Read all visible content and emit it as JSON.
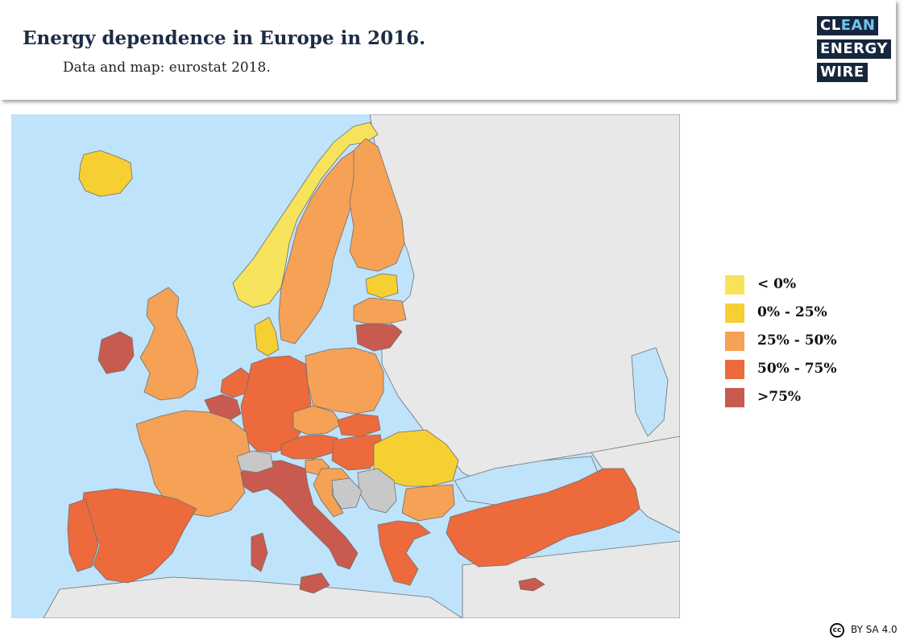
{
  "header": {
    "title": "Energy dependence in Europe in 2016.",
    "subtitle": "Data and map: eurostat 2018."
  },
  "logo": {
    "line1a": "CL",
    "line1b": "EAN",
    "line2": "ENERGY",
    "line3": "WIRE"
  },
  "colors": {
    "sea": "#bfe3fa",
    "non_eu_land": "#e8e8e8",
    "no_data": "#c8c8c8",
    "border": "#6f6f6f",
    "title": "#1d2c46",
    "logo_bg": "#16263d",
    "logo_accent": "#6fc4ee"
  },
  "legend": [
    {
      "label": "< 0%",
      "color": "#f7e35b"
    },
    {
      "label": "0% - 25%",
      "color": "#f6cf33"
    },
    {
      "label": "25% - 50%",
      "color": "#f5a156"
    },
    {
      "label": "50% - 75%",
      "color": "#ec6a3c"
    },
    {
      "label": ">75%",
      "color": "#c95a4f"
    }
  ],
  "map": {
    "countries": [
      {
        "name": "Iceland",
        "class": "0% - 25%"
      },
      {
        "name": "Norway",
        "class": "< 0%"
      },
      {
        "name": "Sweden",
        "class": "25% - 50%"
      },
      {
        "name": "Finland",
        "class": "25% - 50%"
      },
      {
        "name": "Estonia",
        "class": "0% - 25%"
      },
      {
        "name": "Latvia",
        "class": "25% - 50%"
      },
      {
        "name": "Lithuania",
        "class": ">75%"
      },
      {
        "name": "Denmark",
        "class": "0% - 25%"
      },
      {
        "name": "Ireland",
        "class": ">75%"
      },
      {
        "name": "United Kingdom",
        "class": "25% - 50%"
      },
      {
        "name": "Netherlands",
        "class": "50% - 75%"
      },
      {
        "name": "Belgium",
        "class": ">75%"
      },
      {
        "name": "Luxembourg",
        "class": ">75%"
      },
      {
        "name": "Germany",
        "class": "50% - 75%"
      },
      {
        "name": "Poland",
        "class": "25% - 50%"
      },
      {
        "name": "Czechia",
        "class": "25% - 50%"
      },
      {
        "name": "Slovakia",
        "class": "50% - 75%"
      },
      {
        "name": "Austria",
        "class": "50% - 75%"
      },
      {
        "name": "Hungary",
        "class": "50% - 75%"
      },
      {
        "name": "Slovenia",
        "class": "25% - 50%"
      },
      {
        "name": "Croatia",
        "class": "25% - 50%"
      },
      {
        "name": "Romania",
        "class": "0% - 25%"
      },
      {
        "name": "Bulgaria",
        "class": "25% - 50%"
      },
      {
        "name": "France",
        "class": "25% - 50%"
      },
      {
        "name": "Spain",
        "class": "50% - 75%"
      },
      {
        "name": "Portugal",
        "class": "50% - 75%"
      },
      {
        "name": "Italy",
        "class": ">75%"
      },
      {
        "name": "Switzerland",
        "class": "no data"
      },
      {
        "name": "Greece",
        "class": "50% - 75%"
      },
      {
        "name": "Turkey",
        "class": "50% - 75%"
      },
      {
        "name": "Cyprus",
        "class": ">75%"
      },
      {
        "name": "Malta",
        "class": ">75%"
      },
      {
        "name": "Serbia",
        "class": "no data"
      },
      {
        "name": "Bosnia and Herzegovina",
        "class": "no data"
      }
    ]
  },
  "license": {
    "icon": "cc",
    "text": "BY SA 4.0"
  }
}
